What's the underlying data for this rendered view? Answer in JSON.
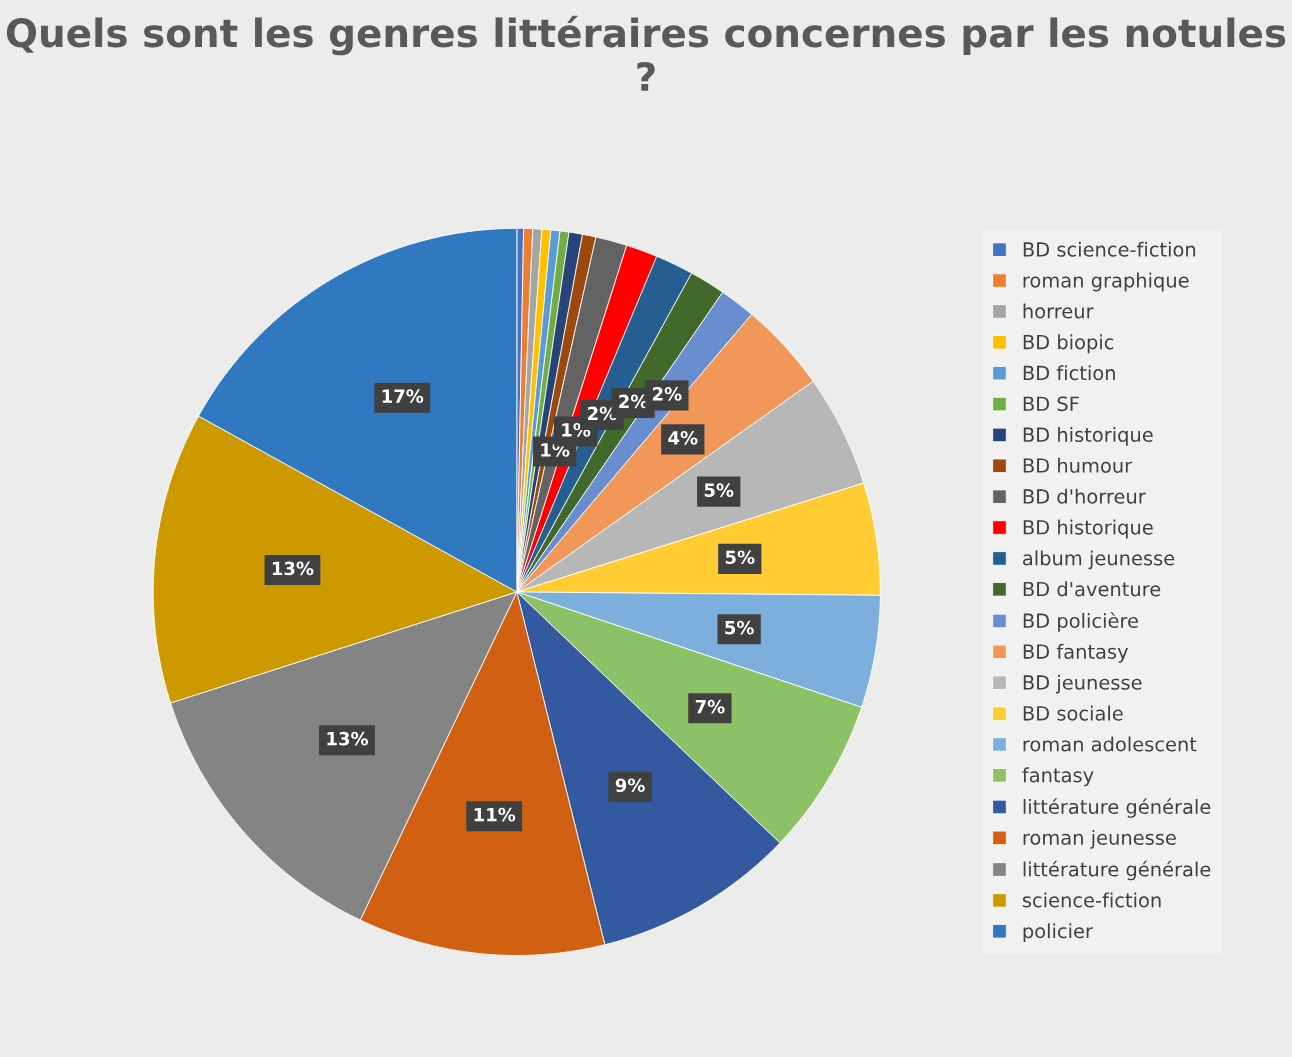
{
  "chart_data": {
    "type": "pie",
    "title": "Quels sont les genres littéraires concernes par les notules ?",
    "categories": [
      "BD science-fiction",
      "roman graphique",
      "horreur",
      "BD biopic",
      "BD fiction",
      "BD SF",
      "BD historique",
      "BD humour",
      "BD d'horreur",
      "BD historique",
      "album jeunesse",
      "BD d'aventure",
      "BD policière",
      "BD fantasy",
      "BD jeunesse",
      "BD sociale",
      "roman adolescent",
      "fantasy",
      "littérature générale",
      "roman jeunesse",
      "littérature générale",
      "science-fiction",
      "policier"
    ],
    "values": [
      0.3,
      0.4,
      0.4,
      0.4,
      0.4,
      0.4,
      0.6,
      0.6,
      1.4,
      1.4,
      1.7,
      1.6,
      1.6,
      4,
      5,
      5,
      5,
      7,
      9,
      11,
      13,
      13,
      17
    ],
    "colors": [
      "#4472c4",
      "#ed7d31",
      "#a5a5a5",
      "#ffc000",
      "#5b9bd5",
      "#70ad47",
      "#264478",
      "#9e480e",
      "#636363",
      "#ff0000",
      "#255e91",
      "#43682b",
      "#698ed0",
      "#f1975a",
      "#b7b7b7",
      "#ffcd33",
      "#7cafdd",
      "#8cc168",
      "#335aa1",
      "#d26012",
      "#848484",
      "#cc9a00",
      "#3079c0"
    ],
    "value_labels": [
      null,
      null,
      null,
      null,
      null,
      null,
      null,
      null,
      "1%",
      "1%",
      "2%",
      "2%",
      "2%",
      "4%",
      "5%",
      "5%",
      "5%",
      "7%",
      "9%",
      "11%",
      "13%",
      "13%",
      "17%"
    ],
    "legend": "right"
  }
}
